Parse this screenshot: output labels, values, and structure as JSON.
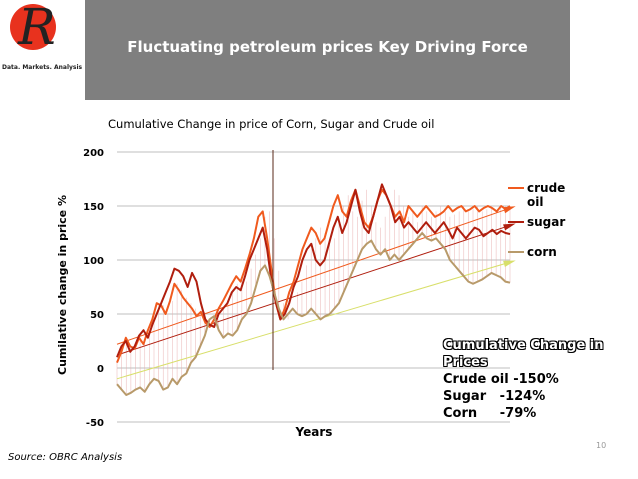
{
  "header": {
    "title": "Fluctuating petroleum prices Key Driving Force",
    "logo_letter": "R",
    "logo_tagline": "Data. Markets. Analysis"
  },
  "chart_data": {
    "type": "line",
    "title": "Cumulative Change in price of Corn, Sugar and Crude oil",
    "xlabel": "Years",
    "ylabel": "Cumilative change in price %",
    "ylim": [
      -50,
      200
    ],
    "yticks": [
      -50,
      0,
      50,
      100,
      150,
      200
    ],
    "ytick_labels": [
      "-50",
      "0",
      "50",
      "100",
      "150",
      "200"
    ],
    "grid": true,
    "legend_position": "right",
    "x_index_range": [
      0,
      100
    ],
    "series": [
      {
        "name": "crude oil",
        "color": "#f05a1e",
        "values": [
          5,
          15,
          28,
          20,
          18,
          28,
          22,
          35,
          45,
          60,
          58,
          50,
          62,
          78,
          72,
          65,
          60,
          55,
          48,
          52,
          42,
          38,
          45,
          55,
          62,
          70,
          78,
          85,
          80,
          92,
          105,
          120,
          140,
          145,
          120,
          90,
          60,
          45,
          55,
          70,
          80,
          95,
          110,
          120,
          130,
          125,
          115,
          120,
          135,
          150,
          160,
          145,
          140,
          155,
          165,
          150,
          135,
          130,
          140,
          155,
          165,
          160,
          150,
          140,
          145,
          135,
          150,
          145,
          140,
          145,
          150,
          145,
          140,
          142,
          145,
          150,
          145,
          148,
          150,
          145,
          147,
          150,
          145,
          148,
          150,
          148,
          145,
          150,
          147,
          150
        ]
      },
      {
        "name": "sugar",
        "color": "#b01e0e",
        "values": [
          10,
          20,
          25,
          15,
          20,
          30,
          35,
          28,
          40,
          50,
          60,
          70,
          80,
          92,
          90,
          85,
          75,
          88,
          80,
          60,
          45,
          40,
          38,
          50,
          55,
          60,
          70,
          75,
          72,
          85,
          100,
          110,
          120,
          130,
          110,
          80,
          60,
          45,
          50,
          60,
          75,
          85,
          100,
          110,
          115,
          100,
          95,
          100,
          115,
          130,
          140,
          125,
          135,
          150,
          165,
          145,
          130,
          125,
          140,
          155,
          170,
          160,
          150,
          135,
          140,
          130,
          135,
          130,
          125,
          130,
          135,
          130,
          125,
          130,
          135,
          128,
          120,
          130,
          125,
          120,
          125,
          130,
          128,
          122,
          125,
          128,
          124,
          127,
          125,
          124
        ]
      },
      {
        "name": "corn",
        "color": "#b89a6a",
        "values": [
          -15,
          -20,
          -25,
          -23,
          -20,
          -18,
          -22,
          -15,
          -10,
          -12,
          -20,
          -18,
          -10,
          -15,
          -8,
          -5,
          5,
          10,
          20,
          30,
          45,
          48,
          35,
          28,
          32,
          30,
          35,
          45,
          50,
          60,
          75,
          90,
          95,
          85,
          70,
          55,
          45,
          50,
          55,
          50,
          48,
          50,
          55,
          50,
          45,
          48,
          50,
          55,
          60,
          70,
          80,
          90,
          100,
          110,
          115,
          118,
          110,
          105,
          110,
          100,
          105,
          100,
          105,
          110,
          115,
          120,
          125,
          120,
          118,
          120,
          115,
          110,
          100,
          95,
          90,
          85,
          80,
          78,
          80,
          82,
          85,
          88,
          86,
          84,
          80,
          79
        ]
      }
    ],
    "trendlines": [
      {
        "series": "crude oil",
        "color": "#f05a1e",
        "start": 22,
        "end": 148
      },
      {
        "series": "sugar",
        "color": "#b01e0e",
        "start": 12,
        "end": 132
      },
      {
        "series": "corn",
        "color": "#d8df6a",
        "start": -10,
        "end": 98
      }
    ],
    "legend": [
      "crude oil",
      "sugar",
      "corn"
    ],
    "summary": {
      "heading": "Cumulative Change in Prices",
      "lines": [
        "Crude oil -150%",
        "Sugar   -124%",
        "Corn     -79%"
      ]
    }
  },
  "footer": {
    "source": "Source: OBRC Analysis",
    "page_number": "10"
  }
}
